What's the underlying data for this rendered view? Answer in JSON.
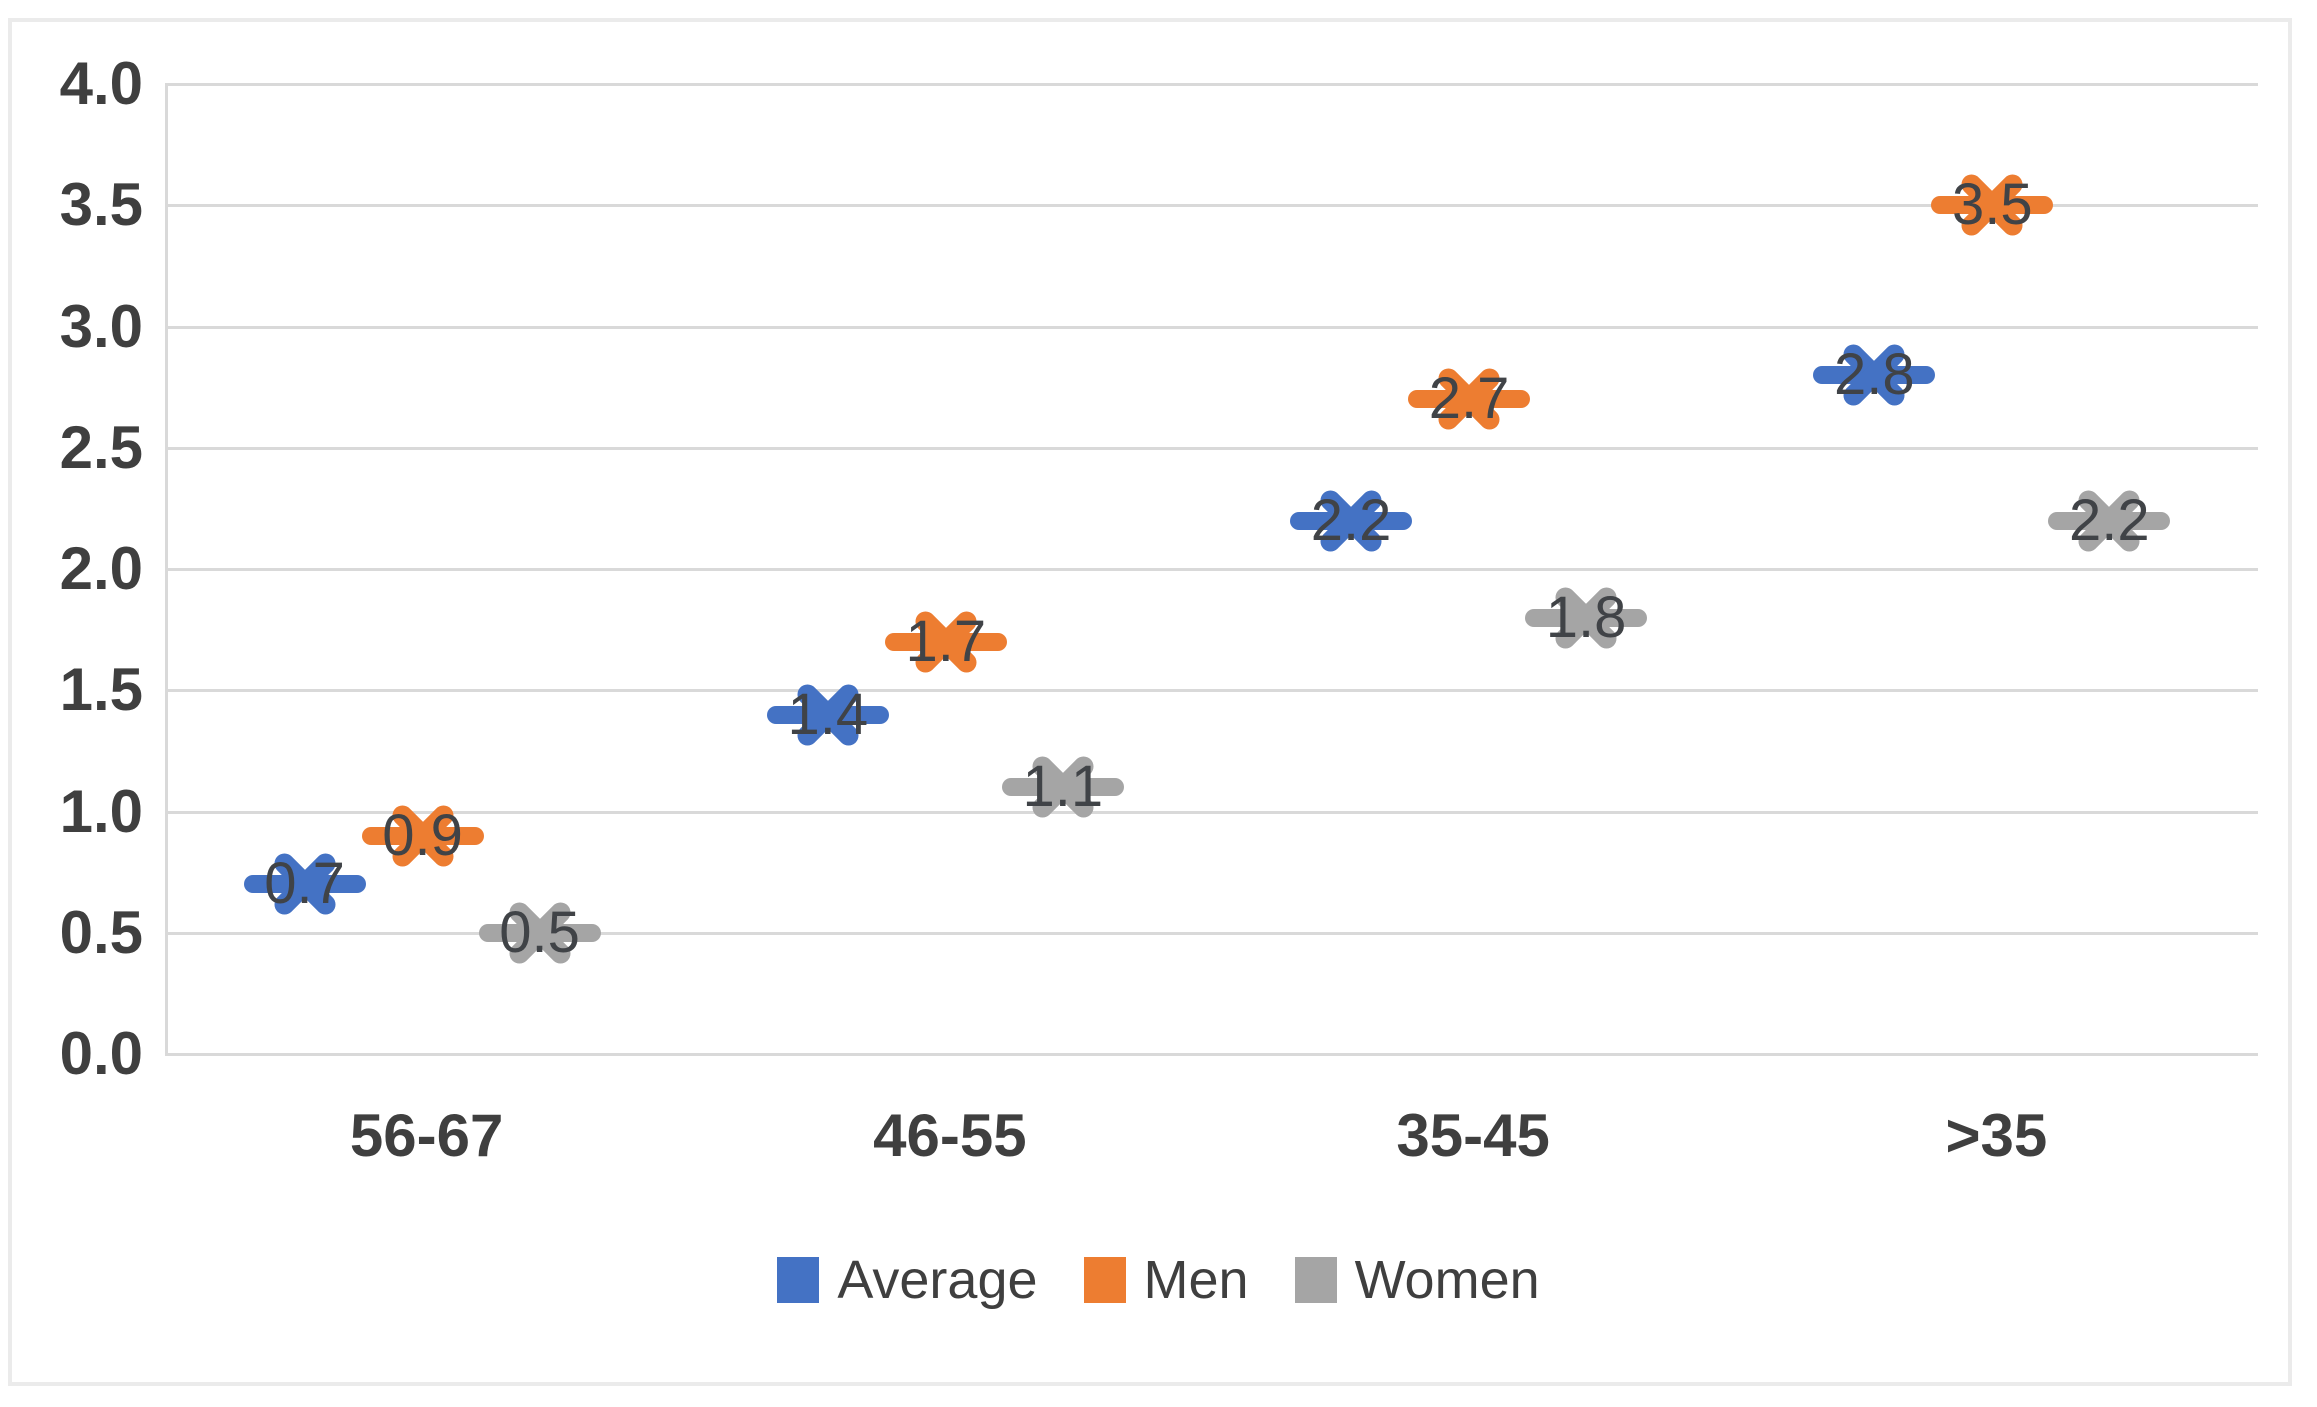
{
  "chart_data": {
    "type": "scatter",
    "title": "",
    "xlabel": "",
    "ylabel": "",
    "categories": [
      "56-67",
      "46-55",
      "35-45",
      ">35"
    ],
    "series": [
      {
        "name": "Average",
        "color": "#4472C4",
        "values": [
          0.7,
          1.4,
          2.2,
          2.8
        ],
        "labels": [
          "0.7",
          "1.4",
          "2.2",
          "2.8"
        ]
      },
      {
        "name": "Men",
        "color": "#ED7D31",
        "values": [
          0.9,
          1.7,
          2.7,
          3.5
        ],
        "labels": [
          "0.9",
          "1.7",
          "2.7",
          "3.5"
        ]
      },
      {
        "name": "Women",
        "color": "#A5A5A5",
        "values": [
          0.5,
          1.1,
          1.8,
          2.2
        ],
        "labels": [
          "0.5",
          "1.1",
          "1.8",
          "2.2"
        ]
      }
    ],
    "y_axis": {
      "min": 0.0,
      "max": 4.0,
      "step": 0.5,
      "tick_labels": [
        "4.0",
        "3.5",
        "3.0",
        "2.5",
        "2.0",
        "1.5",
        "1.0",
        "0.5",
        "0.0"
      ]
    },
    "grid": true,
    "legend_position": "bottom",
    "marker_style": "x-with-dash",
    "colors": {
      "gridline": "#D9D9D9",
      "axis_text": "#3F3F3F",
      "data_label_text": "#404347",
      "frame_border": "#EBEBEB"
    }
  }
}
